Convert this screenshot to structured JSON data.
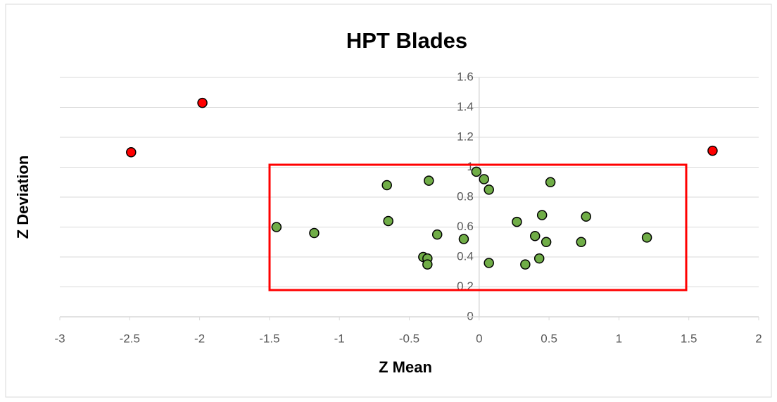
{
  "chart_data": {
    "type": "scatter",
    "title": "HPT Blades",
    "x_label": "Z Mean",
    "y_label": "Z Deviation",
    "xlim": [
      -3,
      2
    ],
    "xticks": [
      -3,
      -2.5,
      -2,
      -1.5,
      -1,
      -0.5,
      0,
      0.5,
      1,
      1.5,
      2
    ],
    "ylim": [
      0,
      1.6
    ],
    "yticks": [
      0,
      0.2,
      0.4,
      0.6,
      0.8,
      1,
      1.2,
      1.4,
      1.6
    ],
    "grid": true,
    "series": [
      {
        "color": "#70ad47",
        "x": [
          -1.45,
          -1.18,
          -0.66,
          -0.65,
          -0.36,
          -0.3,
          -0.4,
          -0.37,
          -0.37,
          -0.11,
          -0.02,
          0.035,
          0.07,
          0.07,
          0.27,
          0.33,
          0.4,
          0.45,
          0.51,
          0.48,
          0.43,
          0.73,
          0.765,
          1.2
        ],
        "values": [
          0.6,
          0.56,
          0.88,
          0.64,
          0.91,
          0.55,
          0.4,
          0.39,
          0.35,
          0.52,
          0.97,
          0.92,
          0.85,
          0.36,
          0.635,
          0.35,
          0.54,
          0.68,
          0.9,
          0.5,
          0.39,
          0.5,
          0.67,
          0.53
        ]
      },
      {
        "color": "#ff0000",
        "x": [
          -2.49,
          -1.98,
          1.67
        ],
        "values": [
          1.1,
          1.43,
          1.11
        ]
      }
    ]
  }
}
